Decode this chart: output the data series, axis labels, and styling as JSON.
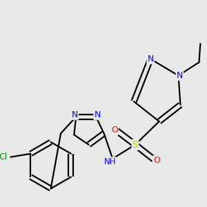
{
  "background_color": "#e8e8e8",
  "bond_color": "#000000",
  "atom_colors": {
    "N": "#0000ff",
    "O": "#ff0000",
    "S": "#cccc00",
    "Cl": "#008800",
    "C": "#000000",
    "H": "#444444"
  },
  "figsize": [
    3.0,
    3.0
  ],
  "dpi": 100
}
